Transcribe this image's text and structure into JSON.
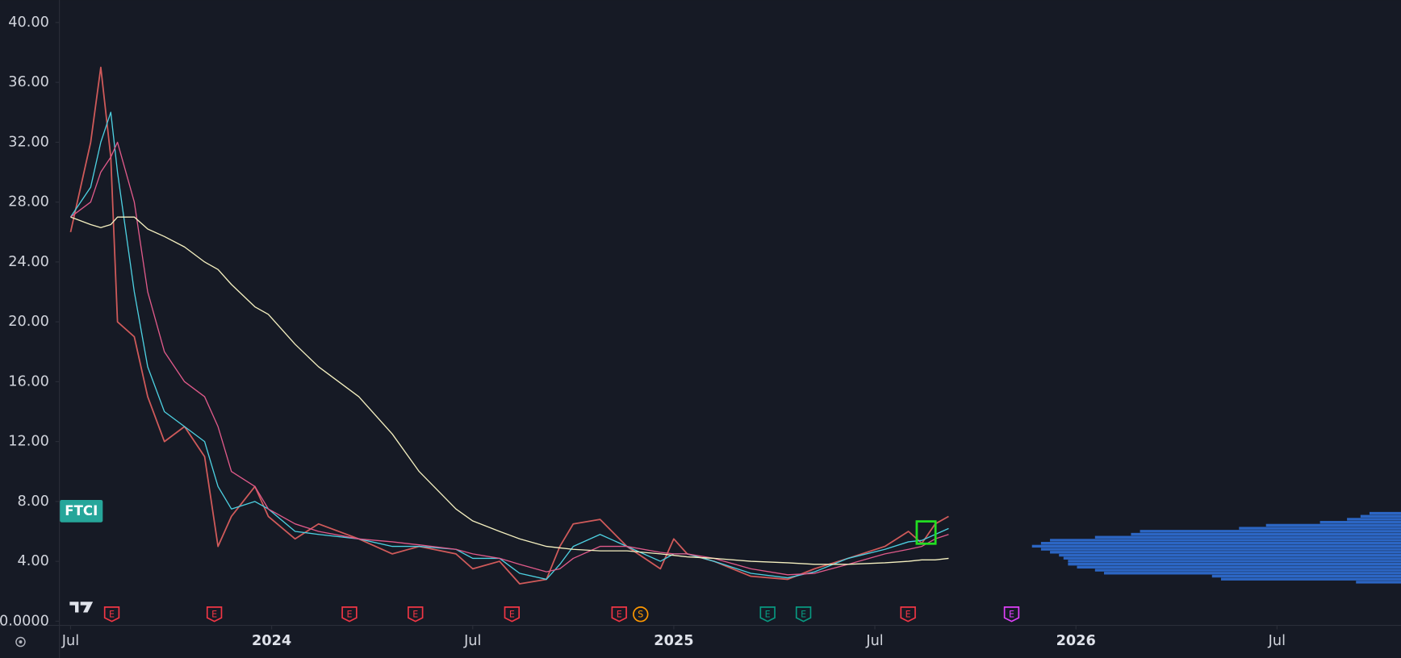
{
  "chart_data": {
    "type": "line",
    "ticker": "FTCI",
    "x": [
      0,
      0.6,
      0.9,
      1.2,
      1.4,
      1.9,
      2.3,
      2.8,
      3.4,
      4,
      4.4,
      4.8,
      5.5,
      5.9,
      6.7,
      7.4,
      8.6,
      9.6,
      10.4,
      11.5,
      12,
      12.8,
      13.4,
      14.2,
      14.6,
      15,
      15.8,
      16.6,
      17.6,
      18,
      18.4,
      19.2,
      20.3,
      21.4,
      22.2,
      23.2,
      24.3,
      25,
      25.4,
      25.8,
      26.2
    ],
    "series": [
      {
        "color": "#d05a5a",
        "values": [
          26,
          32,
          37,
          31,
          20,
          19,
          15,
          12,
          13,
          11,
          5,
          7,
          9,
          7,
          5.5,
          6.5,
          5.5,
          4.5,
          5,
          4.5,
          3.5,
          4,
          2.5,
          2.8,
          5,
          6.5,
          6.8,
          5,
          3.5,
          5.5,
          4.5,
          4,
          3,
          2.8,
          3.5,
          4.2,
          5,
          6,
          5.2,
          6.5,
          7
        ]
      },
      {
        "color": "#4dd0e1",
        "values": [
          27,
          29,
          32,
          34,
          30,
          22,
          17,
          14,
          13,
          12,
          9,
          7.5,
          8,
          7.5,
          6,
          5.8,
          5.5,
          5,
          5,
          4.8,
          4.2,
          4.2,
          3.2,
          2.8,
          3.8,
          5,
          5.8,
          5,
          4,
          4.5,
          4.5,
          4,
          3.2,
          2.9,
          3.3,
          4.2,
          4.8,
          5.3,
          5.4,
          5.8,
          6.2
        ]
      },
      {
        "color": "#e05a8a",
        "values": [
          27,
          28,
          30,
          31,
          32,
          28,
          22,
          18,
          16,
          15,
          13,
          10,
          9,
          7.5,
          6.5,
          6,
          5.5,
          5.3,
          5.1,
          4.8,
          4.5,
          4.2,
          3.8,
          3.3,
          3.5,
          4.2,
          5,
          5,
          4.6,
          4.5,
          4.5,
          4.2,
          3.5,
          3.1,
          3.2,
          3.8,
          4.5,
          4.8,
          5,
          5.5,
          5.8
        ]
      },
      {
        "color": "#f5f0c0",
        "values": [
          27,
          26.5,
          26.3,
          26.5,
          27,
          27,
          26.2,
          25.7,
          25,
          24,
          23.5,
          22.5,
          21,
          20.5,
          18.5,
          17,
          15,
          12.5,
          10,
          7.5,
          6.7,
          6,
          5.5,
          5,
          4.9,
          4.8,
          4.7,
          4.7,
          4.5,
          4.4,
          4.3,
          4.2,
          4,
          3.9,
          3.8,
          3.8,
          3.9,
          4,
          4.1,
          4.1,
          4.2
        ]
      }
    ],
    "xlim": [
      -0.32,
      39.7
    ],
    "ylim": [
      -0.25,
      41.5
    ],
    "yticks": [
      {
        "value": 0,
        "label": "0.0000"
      },
      {
        "value": 4,
        "label": "4.00"
      },
      {
        "value": 8,
        "label": "8.00"
      },
      {
        "value": 12,
        "label": "12.00"
      },
      {
        "value": 16,
        "label": "16.00"
      },
      {
        "value": 20,
        "label": "20.00"
      },
      {
        "value": 24,
        "label": "24.00"
      },
      {
        "value": 28,
        "label": "28.00"
      },
      {
        "value": 32,
        "label": "32.00"
      },
      {
        "value": 36,
        "label": "36.00"
      },
      {
        "value": 40,
        "label": "40.00"
      }
    ],
    "xticks": [
      {
        "value": 0,
        "label": "Jul"
      },
      {
        "value": 6,
        "label": "2024"
      },
      {
        "value": 12,
        "label": "Jul"
      },
      {
        "value": 18,
        "label": "2025"
      },
      {
        "value": 24,
        "label": "Jul"
      },
      {
        "value": 30,
        "label": "2026"
      },
      {
        "value": 36,
        "label": "Jul"
      }
    ],
    "grid": false,
    "events": [
      {
        "x": 1.23,
        "label": "E",
        "color": "#f23645"
      },
      {
        "x": 4.29,
        "label": "E",
        "color": "#f23645"
      },
      {
        "x": 8.32,
        "label": "E",
        "color": "#f23645"
      },
      {
        "x": 10.29,
        "label": "E",
        "color": "#f23645"
      },
      {
        "x": 13.17,
        "label": "E",
        "color": "#f23645"
      },
      {
        "x": 16.37,
        "label": "E",
        "color": "#f23645"
      },
      {
        "x": 17.01,
        "label": "S",
        "color": "#ff9800"
      },
      {
        "x": 20.8,
        "label": "E",
        "color": "#089981"
      },
      {
        "x": 21.87,
        "label": "E",
        "color": "#089981"
      },
      {
        "x": 24.99,
        "label": "E",
        "color": "#f23645"
      },
      {
        "x": 28.08,
        "label": "E",
        "color": "#e040fb"
      }
    ],
    "volume_profile": {
      "color": "#2f6fd6",
      "prices": [
        2.6,
        2.8,
        3.0,
        3.2,
        3.4,
        3.6,
        3.8,
        4.0,
        4.2,
        4.4,
        4.6,
        4.8,
        5.0,
        5.2,
        5.4,
        5.6,
        5.8,
        6.0,
        6.2,
        6.4,
        6.6,
        6.8,
        7.0,
        7.2
      ],
      "volumes": [
        50,
        200,
        210,
        330,
        340,
        360,
        370,
        370,
        375,
        380,
        390,
        400,
        410,
        400,
        390,
        340,
        300,
        290,
        180,
        150,
        90,
        60,
        45,
        35
      ]
    }
  }
}
